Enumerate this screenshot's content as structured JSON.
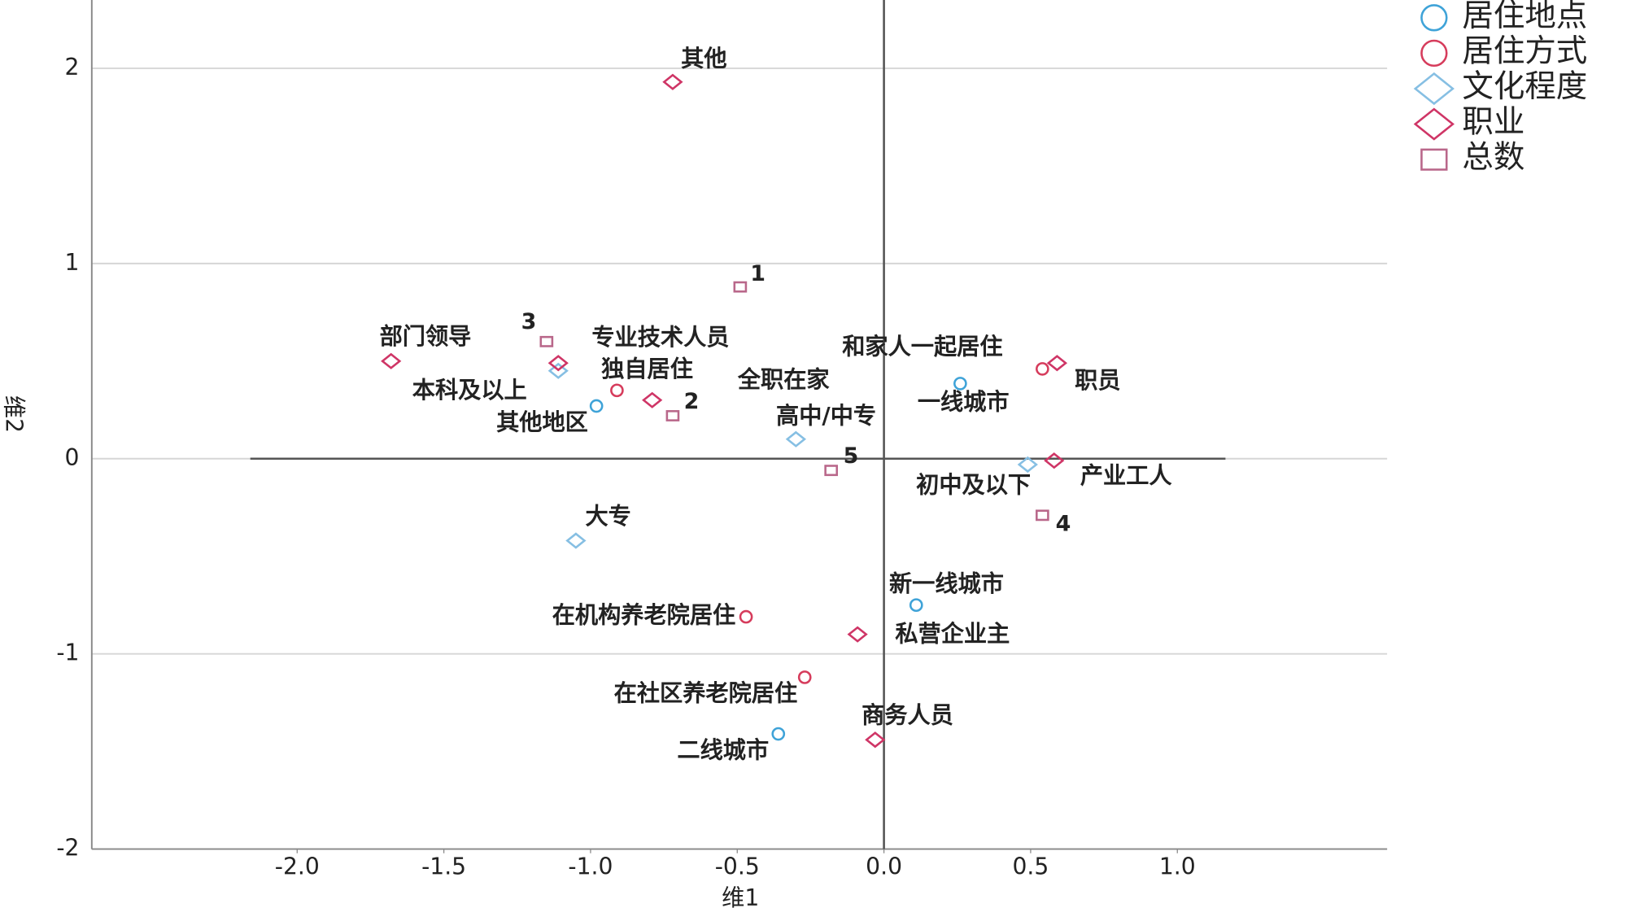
{
  "chart_data": {
    "type": "scatter",
    "x_label": "维1",
    "y_label": "维2",
    "xlim": [
      -2.7,
      1.715
    ],
    "ylim": [
      -2,
      2.35
    ],
    "xticks": [
      {
        "value": -2,
        "label": "-2.0"
      },
      {
        "value": -1.5,
        "label": "-1.5"
      },
      {
        "value": -1,
        "label": "-1.0"
      },
      {
        "value": -0.5,
        "label": "-0.5"
      },
      {
        "value": 0,
        "label": "0.0"
      },
      {
        "value": 0.5,
        "label": "0.5"
      },
      {
        "value": 1,
        "label": "1.0"
      }
    ],
    "yticks": [
      -2,
      -1,
      0,
      1,
      2
    ],
    "grid": true,
    "legend": "top-right",
    "series": [
      {
        "name": "居住地点",
        "color": "#3fa3d8",
        "marker": "circle",
        "labels": [
          "一线城市",
          "其他地区",
          "新一线城市",
          "二线城市"
        ],
        "x": [
          0.26,
          -0.98,
          0.11,
          -0.36
        ],
        "values": [
          0.385,
          0.27,
          -0.75,
          -1.41
        ]
      },
      {
        "name": "居住方式",
        "color": "#d63c5c",
        "marker": "circle",
        "labels": [
          "和家人一起居住",
          "独自居住",
          "在机构养老院居住",
          "在社区养老院居住"
        ],
        "x": [
          0.54,
          -0.91,
          -0.47,
          -0.27
        ],
        "values": [
          0.46,
          0.35,
          -0.81,
          -1.12
        ]
      },
      {
        "name": "文化程度",
        "color": "#86bfe3",
        "marker": "diamond",
        "labels": [
          "本科及以上",
          "高中/中专",
          "初中及以下",
          "大专"
        ],
        "x": [
          -1.11,
          -0.3,
          0.49,
          -1.05
        ],
        "values": [
          0.45,
          0.1,
          -0.03,
          -0.42
        ]
      },
      {
        "name": "职业",
        "color": "#cf3566",
        "marker": "diamond",
        "labels": [
          "其他",
          "部门领导",
          "专业技术人员",
          "全职在家",
          "职员",
          "产业工人",
          "私营企业主",
          "商务人员"
        ],
        "x": [
          -0.72,
          -1.68,
          -1.11,
          -0.79,
          0.59,
          0.58,
          -0.09,
          -0.03
        ],
        "values": [
          1.93,
          0.5,
          0.49,
          0.3,
          0.49,
          -0.01,
          -0.9,
          -1.44
        ]
      },
      {
        "name": "总数",
        "color": "#b9678a",
        "marker": "square",
        "labels": [
          "1",
          "3",
          "2",
          "5",
          "4"
        ],
        "x": [
          -0.49,
          -1.15,
          -0.72,
          -0.18,
          0.54
        ],
        "values": [
          0.88,
          0.6,
          0.22,
          -0.06,
          -0.29
        ]
      }
    ]
  }
}
